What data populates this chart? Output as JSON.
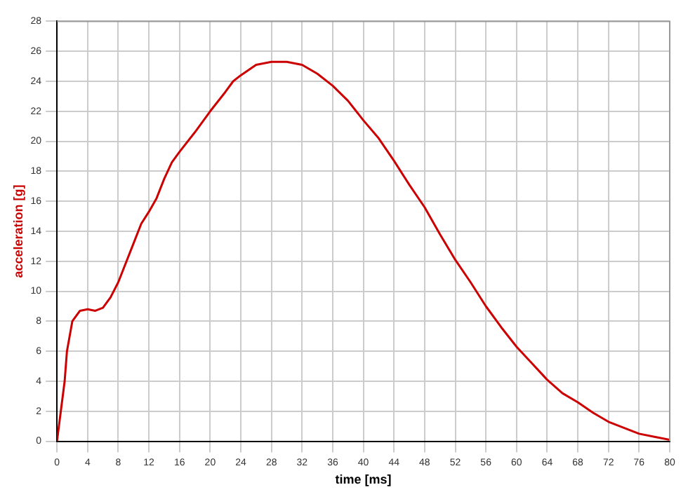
{
  "chart_data": {
    "type": "line",
    "xlabel": "time [ms]",
    "ylabel": "acceleration [g]",
    "x": [
      0,
      0.5,
      1,
      1.3,
      2,
      3,
      4,
      5,
      6,
      7,
      8,
      10,
      11,
      12,
      13,
      14,
      15,
      16,
      18,
      20,
      22,
      23,
      24,
      26,
      28,
      30,
      32,
      34,
      36,
      38,
      40,
      42,
      44,
      46,
      48,
      50,
      52,
      54,
      56,
      58,
      60,
      62,
      64,
      66,
      68,
      70,
      72,
      74,
      76,
      78,
      80
    ],
    "series": [
      {
        "color": "#cc0000",
        "values": [
          0,
          2,
          4,
          6,
          8,
          8.7,
          8.8,
          8.7,
          8.9,
          9.6,
          10.6,
          13.2,
          14.5,
          15.3,
          16.2,
          17.5,
          18.6,
          19.3,
          20.6,
          22,
          23.3,
          24,
          24.4,
          25.1,
          25.3,
          25.3,
          25.1,
          24.5,
          23.7,
          22.7,
          21.4,
          20.2,
          18.7,
          17.1,
          15.6,
          13.8,
          12.1,
          10.6,
          9,
          7.6,
          6.3,
          5.2,
          4.1,
          3.2,
          2.6,
          1.9,
          1.3,
          0.9,
          0.5,
          0.3,
          0.1
        ]
      }
    ],
    "xlim": [
      0,
      80
    ],
    "xticks": [
      0,
      4,
      8,
      12,
      16,
      20,
      24,
      28,
      32,
      36,
      40,
      44,
      48,
      52,
      56,
      60,
      64,
      68,
      72,
      76,
      80
    ],
    "ylim": [
      0,
      28
    ],
    "yticks": [
      0,
      2,
      4,
      6,
      8,
      10,
      12,
      14,
      16,
      18,
      20,
      22,
      24,
      26,
      28
    ],
    "grid": true,
    "legend": false,
    "marker": "none",
    "line_style": "solid"
  }
}
